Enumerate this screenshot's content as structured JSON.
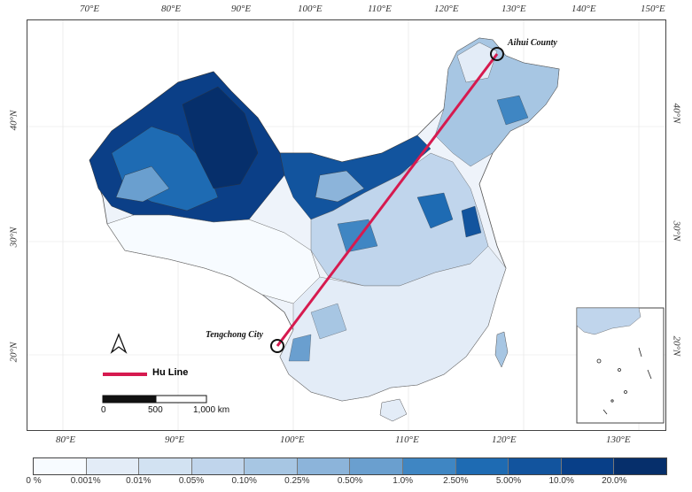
{
  "map": {
    "lon_labels_top": [
      "70°E",
      "80°E",
      "90°E",
      "100°E",
      "110°E",
      "120°E",
      "130°E",
      "140°E",
      "150°E"
    ],
    "lon_labels_bottom": [
      "80°E",
      "90°E",
      "100°E",
      "110°E",
      "120°E",
      "130°E"
    ],
    "lat_labels_left": [
      "40°N",
      "30°N",
      "20°N"
    ],
    "lat_labels_right": [
      "40°N",
      "30°N",
      "20°N"
    ],
    "places": [
      {
        "name": "Aihui County"
      },
      {
        "name": "Tengchong City"
      }
    ],
    "hu_line_label": "Hu Line",
    "hu_line_color": "#d61a4f",
    "scale_labels": [
      "0",
      "500",
      "1,000 km"
    ],
    "north_arrow": "north-arrow-icon"
  },
  "legend": {
    "labels": [
      "0 %",
      "0.001%",
      "0.01%",
      "0.05%",
      "0.10%",
      "0.25%",
      "0.50%",
      "1.0%",
      "2.50%",
      "5.00%",
      "10.0%",
      "20.0%"
    ],
    "colors": [
      "#f7fbff",
      "#e3ecf7",
      "#d2e2f2",
      "#c0d5ec",
      "#a7c6e3",
      "#8cb4da",
      "#6a9fcf",
      "#3f86c3",
      "#1e6bb3",
      "#12549e",
      "#083f88",
      "#062f6b"
    ]
  }
}
